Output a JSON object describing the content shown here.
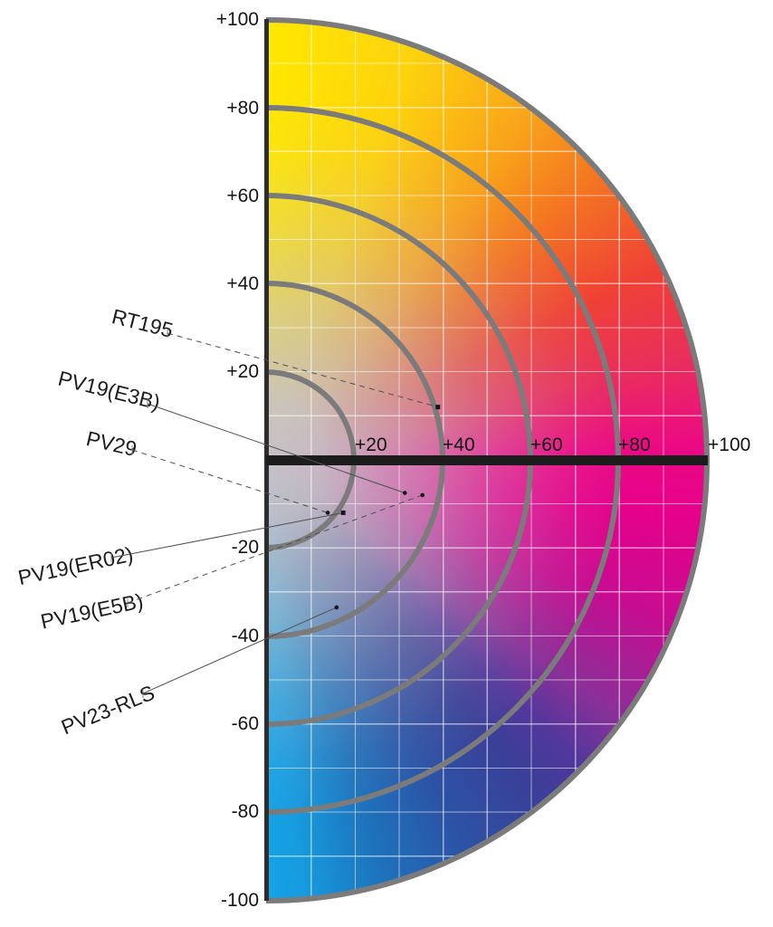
{
  "axes": {
    "b_ticks": [
      "+100",
      "+80",
      "+60",
      "+40",
      "+20",
      "-20",
      "-40",
      "-60",
      "-80",
      "-100"
    ],
    "a_ticks": [
      "+20",
      "+40",
      "+60",
      "+80",
      "+100"
    ]
  },
  "chart_data": {
    "type": "scatter",
    "title": "",
    "xlabel": "",
    "ylabel": "",
    "x_range": [
      0,
      100
    ],
    "y_range": [
      -100,
      100
    ],
    "grid_step": 10,
    "grid_on": true,
    "chroma_rings": [
      20,
      40,
      60,
      80,
      100
    ],
    "ring_tick_values_vertical": [
      100,
      80,
      60,
      40,
      20,
      -20,
      -40,
      -60,
      -80,
      -100
    ],
    "ring_tick_values_horizontal": [
      20,
      40,
      60,
      80,
      100
    ],
    "points": [
      {
        "label": "RT195",
        "a": 39,
        "b": 12,
        "leader": "dashed",
        "marker": "square"
      },
      {
        "label": "PV19(E3B)",
        "a": 31.5,
        "b": -7.5,
        "leader": "solid",
        "marker": "dot"
      },
      {
        "label": "PV29",
        "a": 14,
        "b": -12,
        "leader": "dashed",
        "marker": "dot"
      },
      {
        "label": "PV19(ER02)",
        "a": 17.5,
        "b": -12,
        "leader": "solid",
        "marker": "square"
      },
      {
        "label": "PV19(E5B)",
        "a": 35.5,
        "b": -8,
        "leader": "dashed",
        "marker": "dot"
      },
      {
        "label": "PV23-RLS",
        "a": 16,
        "b": -33.5,
        "leader": "solid",
        "marker": "dot"
      }
    ],
    "colors": {
      "yellow_top": "#ffe800",
      "orange": "#f47a20",
      "red": "#ef4136",
      "magenta_right": "#eb0a84",
      "purple": "#8a3098",
      "indigo_lower_right": "#3a3f97",
      "azure_bottom": "#15a3e8",
      "center_gray": "#c6c2c8",
      "ring_gray": "#7b7b7b",
      "axis_black": "#1c1c1c"
    }
  }
}
